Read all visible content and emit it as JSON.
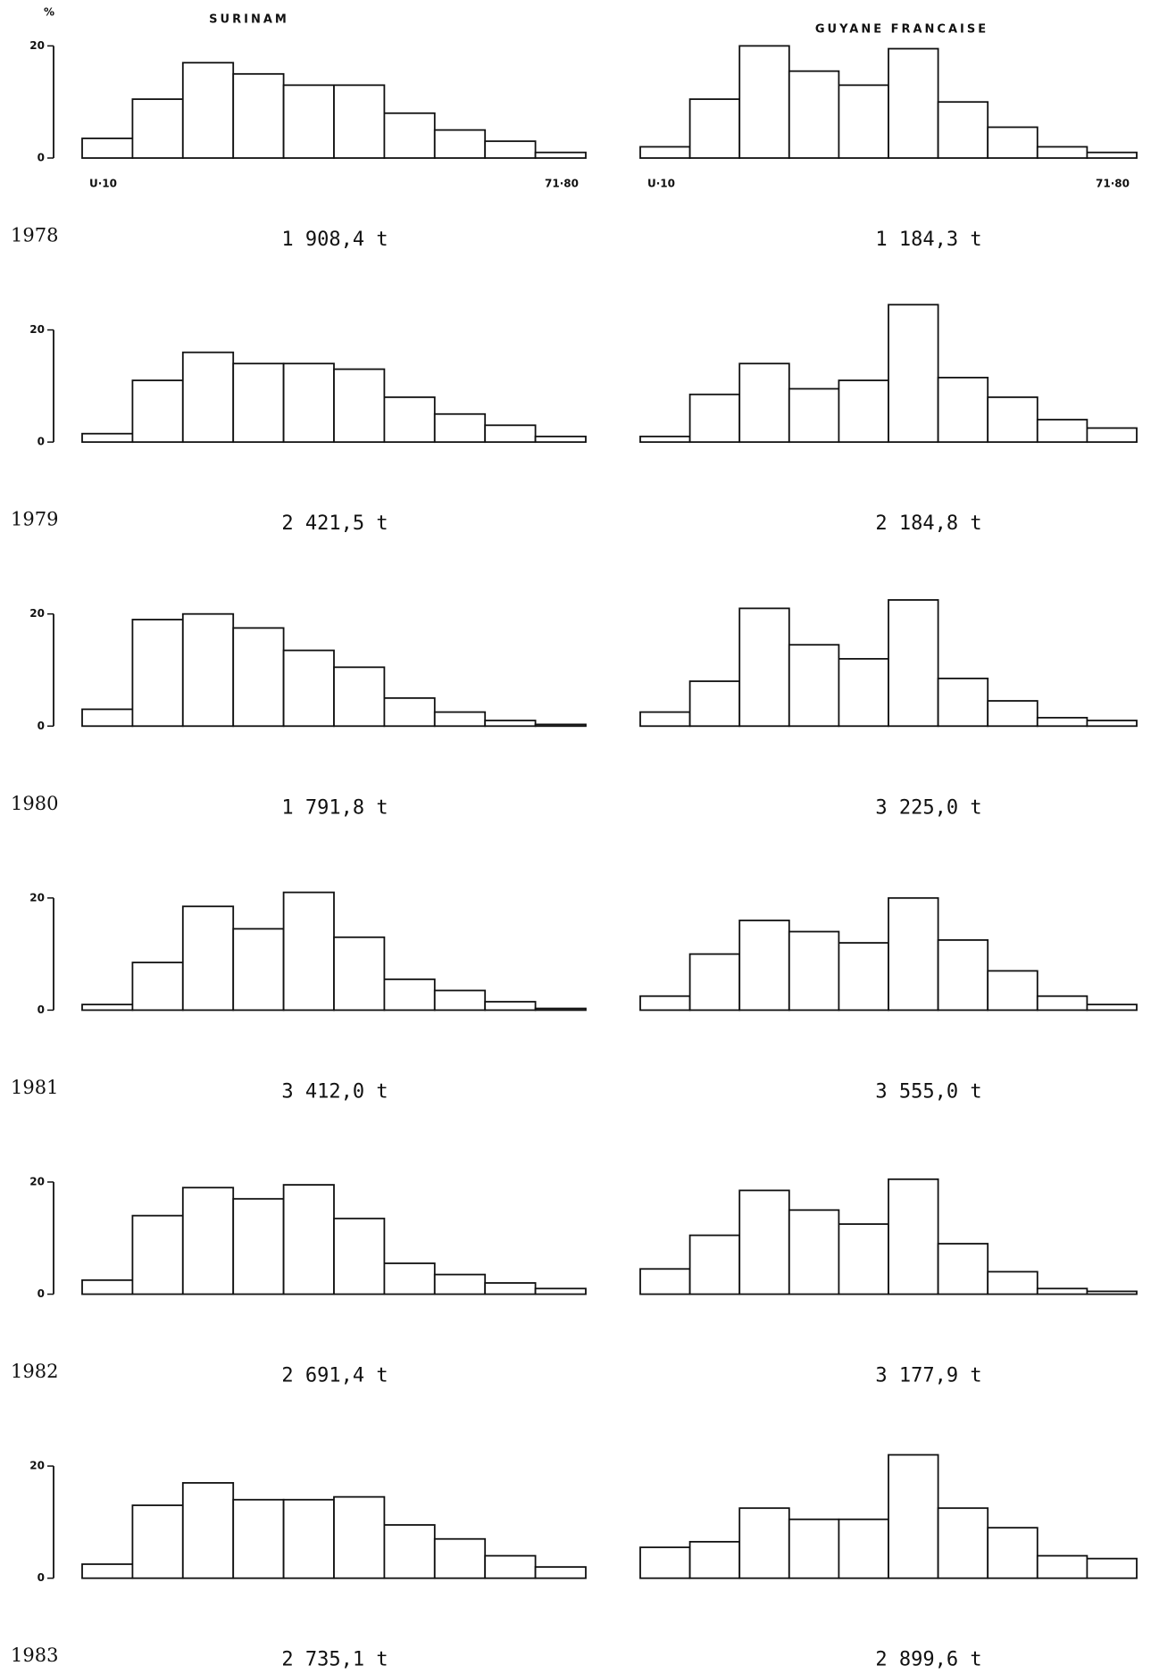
{
  "chart_data": [
    {
      "type": "bar",
      "title": "SURINAM",
      "ylabel": "%",
      "categories": [
        "U·10",
        null,
        null,
        null,
        null,
        null,
        null,
        null,
        null,
        "71·80"
      ],
      "values": [
        3.5,
        10.5,
        17,
        15,
        13,
        13,
        8,
        5,
        3,
        1
      ],
      "ylim": [
        0,
        20
      ],
      "yticks": [
        0,
        20
      ],
      "year": "1978",
      "total": "1 908,4 t"
    },
    {
      "type": "bar",
      "title": "GUYANE FRANCAISE",
      "categories": [
        "U·10",
        null,
        null,
        null,
        null,
        null,
        null,
        null,
        null,
        "71·80"
      ],
      "values": [
        2,
        10.5,
        20,
        15.5,
        13,
        19.5,
        10,
        5.5,
        2,
        1
      ],
      "total": "1 184,3 t"
    },
    {
      "type": "bar",
      "values": [
        1.5,
        11,
        16,
        14,
        14,
        13,
        8,
        5,
        3,
        1
      ],
      "ylim": [
        0,
        20
      ],
      "yticks": [
        0,
        20
      ],
      "year": "1979",
      "total": "2 421,5 t"
    },
    {
      "type": "bar",
      "values": [
        1,
        8.5,
        14,
        9.5,
        11,
        24.5,
        11.5,
        8,
        4,
        2.5
      ],
      "total": "2 184,8 t"
    },
    {
      "type": "bar",
      "values": [
        3,
        19,
        20,
        17.5,
        13.5,
        10.5,
        5,
        2.5,
        1,
        0.3
      ],
      "ylim": [
        0,
        20
      ],
      "yticks": [
        0,
        20
      ],
      "year": "1980",
      "total": "1 791,8 t"
    },
    {
      "type": "bar",
      "values": [
        2.5,
        8,
        21,
        14.5,
        12,
        22.5,
        8.5,
        4.5,
        1.5,
        1
      ],
      "total": "3 225,0 t"
    },
    {
      "type": "bar",
      "values": [
        1,
        8.5,
        18.5,
        14.5,
        21,
        13,
        5.5,
        3.5,
        1.5,
        0.3
      ],
      "ylim": [
        0,
        20
      ],
      "yticks": [
        0,
        20
      ],
      "year": "1981",
      "total": "3 412,0 t"
    },
    {
      "type": "bar",
      "values": [
        2.5,
        10,
        16,
        14,
        12,
        20,
        12.5,
        7,
        2.5,
        1
      ],
      "total": "3 555,0 t"
    },
    {
      "type": "bar",
      "values": [
        2.5,
        14,
        19,
        17,
        19.5,
        13.5,
        5.5,
        3.5,
        2,
        1
      ],
      "ylim": [
        0,
        20
      ],
      "yticks": [
        0,
        20
      ],
      "year": "1982",
      "total": "2 691,4 t"
    },
    {
      "type": "bar",
      "values": [
        4.5,
        10.5,
        18.5,
        15,
        12.5,
        20.5,
        9,
        4,
        1,
        0.5
      ],
      "total": "3 177,9 t"
    },
    {
      "type": "bar",
      "values": [
        2.5,
        13,
        17,
        14,
        14,
        14.5,
        9.5,
        7,
        4,
        2
      ],
      "ylim": [
        0,
        20
      ],
      "yticks": [
        0,
        20
      ],
      "year": "1983",
      "total": "2 735,1 t"
    },
    {
      "type": "bar",
      "values": [
        5.5,
        6.5,
        12.5,
        10.5,
        10.5,
        22,
        12.5,
        9,
        4,
        3.5
      ],
      "total": "2 899,6 t"
    }
  ]
}
